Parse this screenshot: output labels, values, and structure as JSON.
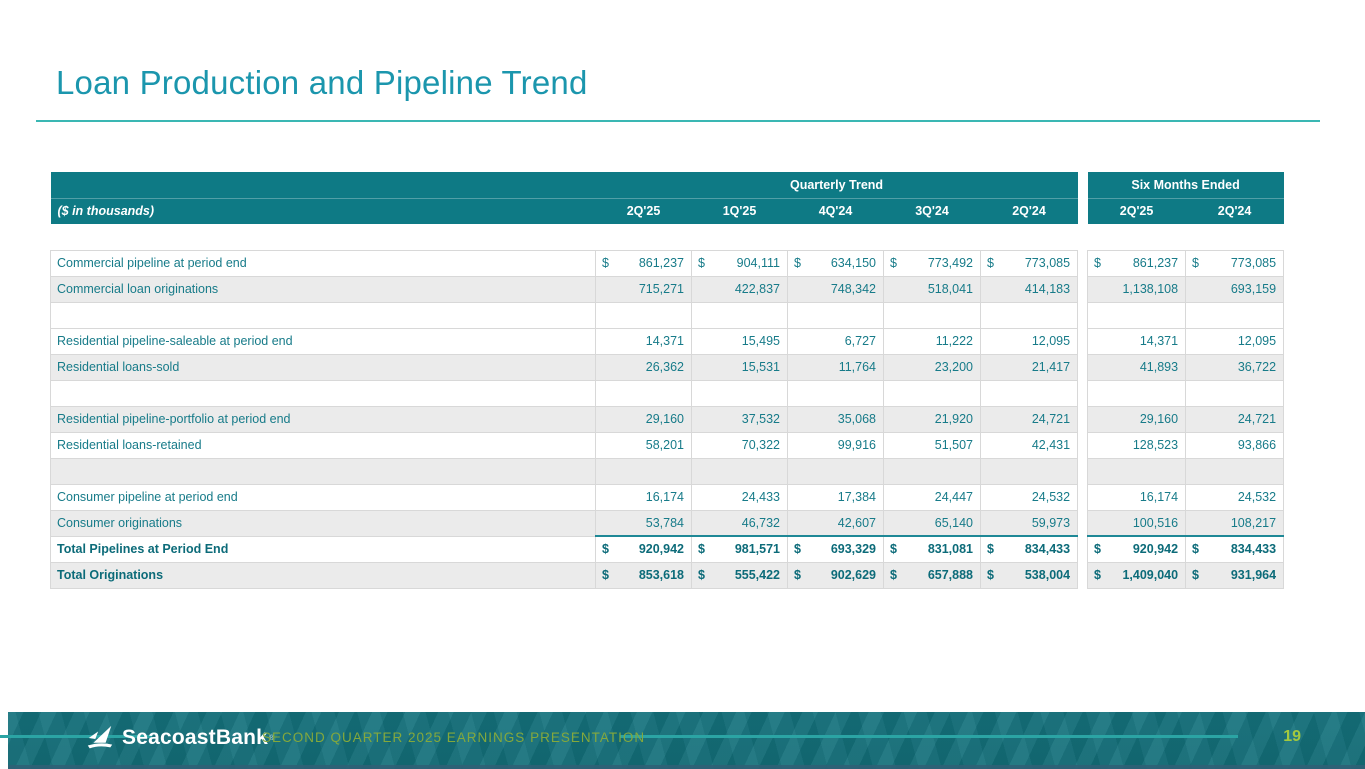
{
  "slide": {
    "title": "Loan Production and Pipeline Trend",
    "footer_text": "SECOND QUARTER 2025 EARNINGS PRESENTATION",
    "brand": "SeacoastBank",
    "trademark": "®",
    "page_number": "19"
  },
  "colors": {
    "title_teal": "#1b96ad",
    "rule_teal": "#3ab7b3",
    "header_teal": "#0e7a85",
    "body_text_teal": "#177b89",
    "total_text_teal": "#0c6b79",
    "shaded_row": "#ebebeb",
    "cell_border": "#d8d8d8",
    "total_top_border": "#1e8896",
    "footer_band": "#15737e",
    "footer_text_green": "#84a83c",
    "page_number_green": "#a3c93e",
    "footer_line": "#2ba4a4",
    "footer_bottom_strip": "#2f6076"
  },
  "table": {
    "group_headers": [
      "Quarterly Trend",
      "Six Months Ended"
    ],
    "unit_label": "($ in thousands)",
    "quarterly_columns": [
      "2Q'25",
      "1Q'25",
      "4Q'24",
      "3Q'24",
      "2Q'24"
    ],
    "six_month_columns": [
      "2Q'25",
      "2Q'24"
    ],
    "rows": [
      {
        "label": "Commercial pipeline at period end",
        "currency": "$",
        "shaded": false,
        "bold": false,
        "blank": false,
        "quarterly": [
          "861,237",
          "904,111",
          "634,150",
          "773,492",
          "773,085"
        ],
        "six_months": [
          "861,237",
          "773,085"
        ]
      },
      {
        "label": "Commercial loan originations",
        "currency": "",
        "shaded": true,
        "bold": false,
        "blank": false,
        "quarterly": [
          "715,271",
          "422,837",
          "748,342",
          "518,041",
          "414,183"
        ],
        "six_months": [
          "1,138,108",
          "693,159"
        ]
      },
      {
        "label": "",
        "currency": "",
        "shaded": false,
        "bold": false,
        "blank": true,
        "quarterly": [
          "",
          "",
          "",
          "",
          ""
        ],
        "six_months": [
          "",
          ""
        ]
      },
      {
        "label": "Residential pipeline-saleable at period end",
        "currency": "",
        "shaded": false,
        "bold": false,
        "blank": false,
        "quarterly": [
          "14,371",
          "15,495",
          "6,727",
          "11,222",
          "12,095"
        ],
        "six_months": [
          "14,371",
          "12,095"
        ]
      },
      {
        "label": "Residential loans-sold",
        "currency": "",
        "shaded": true,
        "bold": false,
        "blank": false,
        "quarterly": [
          "26,362",
          "15,531",
          "11,764",
          "23,200",
          "21,417"
        ],
        "six_months": [
          "41,893",
          "36,722"
        ]
      },
      {
        "label": "",
        "currency": "",
        "shaded": false,
        "bold": false,
        "blank": true,
        "quarterly": [
          "",
          "",
          "",
          "",
          ""
        ],
        "six_months": [
          "",
          ""
        ]
      },
      {
        "label": "Residential pipeline-portfolio at period end",
        "currency": "",
        "shaded": true,
        "bold": false,
        "blank": false,
        "quarterly": [
          "29,160",
          "37,532",
          "35,068",
          "21,920",
          "24,721"
        ],
        "six_months": [
          "29,160",
          "24,721"
        ]
      },
      {
        "label": "Residential loans-retained",
        "currency": "",
        "shaded": false,
        "bold": false,
        "blank": false,
        "quarterly": [
          "58,201",
          "70,322",
          "99,916",
          "51,507",
          "42,431"
        ],
        "six_months": [
          "128,523",
          "93,866"
        ]
      },
      {
        "label": "",
        "currency": "",
        "shaded": true,
        "bold": false,
        "blank": true,
        "quarterly": [
          "",
          "",
          "",
          "",
          ""
        ],
        "six_months": [
          "",
          ""
        ]
      },
      {
        "label": "Consumer pipeline at period end",
        "currency": "",
        "shaded": false,
        "bold": false,
        "blank": false,
        "quarterly": [
          "16,174",
          "24,433",
          "17,384",
          "24,447",
          "24,532"
        ],
        "six_months": [
          "16,174",
          "24,532"
        ]
      },
      {
        "label": "Consumer originations",
        "currency": "",
        "shaded": true,
        "bold": false,
        "blank": false,
        "quarterly": [
          "53,784",
          "46,732",
          "42,607",
          "65,140",
          "59,973"
        ],
        "six_months": [
          "100,516",
          "108,217"
        ]
      },
      {
        "label": "Total Pipelines at Period End",
        "currency": "$",
        "shaded": false,
        "bold": true,
        "blank": false,
        "top_border": true,
        "quarterly": [
          "920,942",
          "981,571",
          "693,329",
          "831,081",
          "834,433"
        ],
        "six_months": [
          "920,942",
          "834,433"
        ]
      },
      {
        "label": "Total Originations",
        "currency": "$",
        "shaded": true,
        "bold": true,
        "blank": false,
        "quarterly": [
          "853,618",
          "555,422",
          "902,629",
          "657,888",
          "538,004"
        ],
        "six_months": [
          "1,409,040",
          "931,964"
        ]
      }
    ]
  }
}
